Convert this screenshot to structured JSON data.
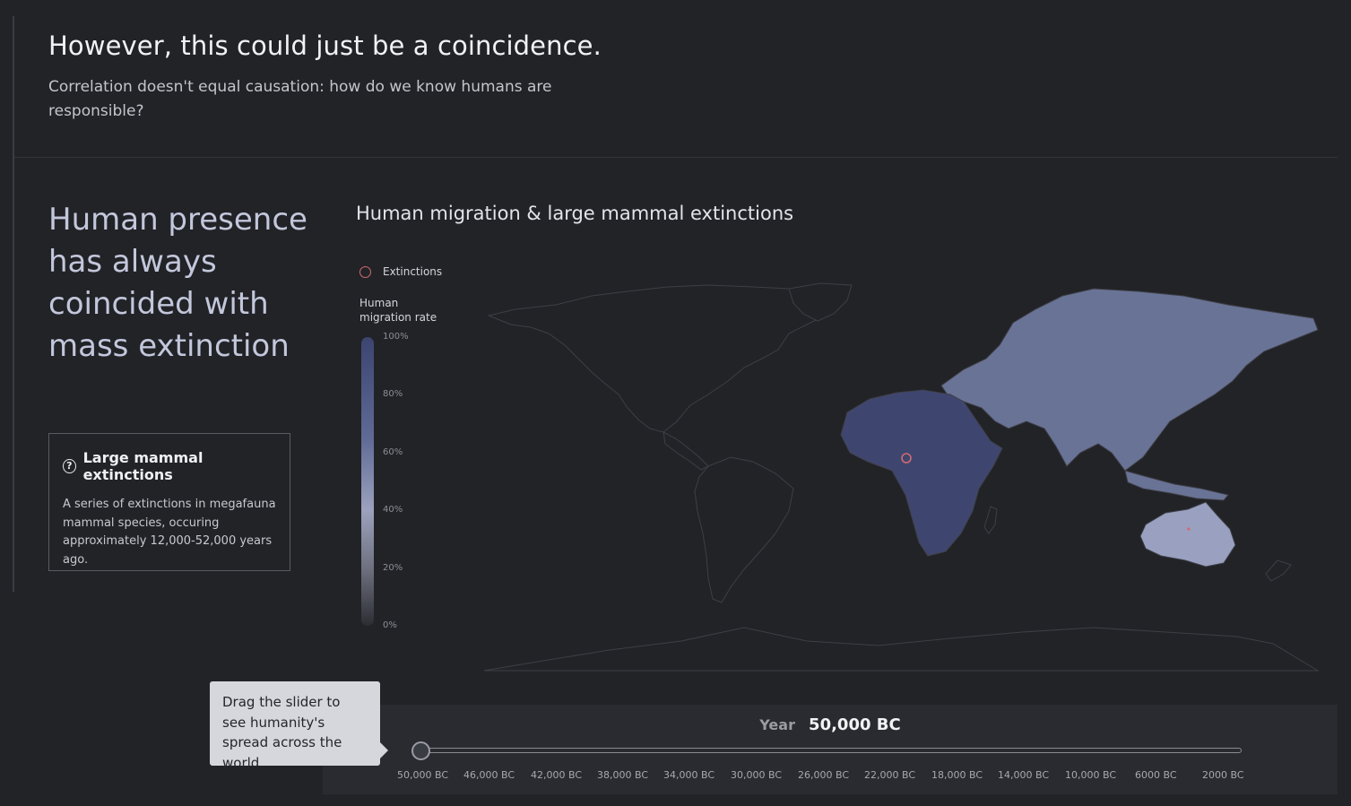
{
  "header": {
    "title": "However, this could just be a coincidence.",
    "subtitle": "Correlation doesn't equal causation: how do we know humans are responsible?"
  },
  "headline": "Human presence has always coincided with mass extinction",
  "info_box": {
    "icon": "question-circle-icon",
    "title": "Large mammal extinctions",
    "description": "A series of extinctions in megafauna mammal species, occuring approximately 12,000-52,000 years ago."
  },
  "map": {
    "title": "Human migration & large mammal extinctions",
    "legend_extinctions": "Extinctions",
    "scale_title": "Human migration rate",
    "scale_ticks": [
      "100%",
      "80%",
      "60%",
      "40%",
      "20%",
      "0%"
    ],
    "colors": {
      "land_unreached": "#222327",
      "outline": "#3e3f46",
      "africa": "#3e4670",
      "eurasia": "#697396",
      "australia": "#9aa1c0",
      "extinction_marker": "#d06a72"
    },
    "regions": {
      "africa": {
        "migration": 0.9
      },
      "eurasia": {
        "migration": 0.72
      },
      "australia": {
        "migration": 0.58
      },
      "americas": {
        "migration": 0.0
      }
    }
  },
  "slider": {
    "year_label": "Year",
    "year_value": "50,000  BC",
    "ticks": [
      "50,000  BC",
      "46,000  BC",
      "42,000  BC",
      "38,000  BC",
      "34,000  BC",
      "30,000  BC",
      "26,000  BC",
      "22,000  BC",
      "18,000  BC",
      "14,000  BC",
      "10,000  BC",
      "6000 BC",
      "2000 BC"
    ]
  },
  "tooltip": "Drag the slider to see humanity's spread across the world."
}
